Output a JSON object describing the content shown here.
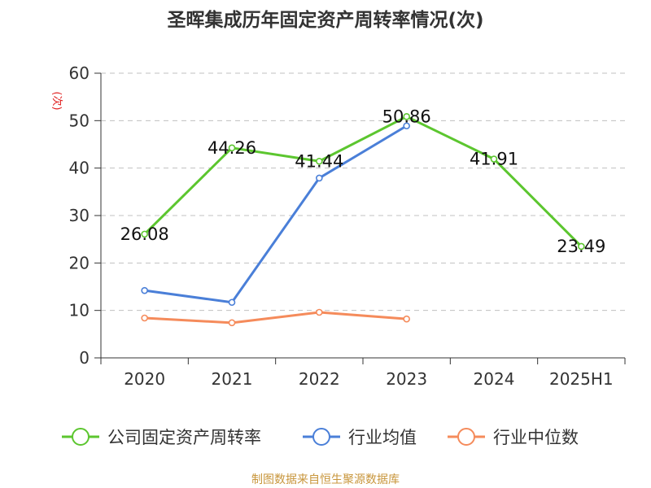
{
  "chart_data": {
    "type": "line",
    "title": "圣晖集成历年固定资产周转率情况(次)",
    "ylabel": "(次)",
    "xlabel": "",
    "categories": [
      "2020",
      "2021",
      "2022",
      "2023",
      "2024",
      "2025H1"
    ],
    "ylim": [
      0,
      60
    ],
    "yticks": [
      0,
      10,
      20,
      30,
      40,
      50,
      60
    ],
    "grid": true,
    "legend_position": "bottom",
    "series": [
      {
        "name": "公司固定资产周转率",
        "color": "#5cc62f",
        "values": [
          26.08,
          44.26,
          41.44,
          50.86,
          41.91,
          23.49
        ],
        "labels": [
          "26.08",
          "44.26",
          "41.44",
          "50.86",
          "41.91",
          "23.49"
        ]
      },
      {
        "name": "行业均值",
        "color": "#4a7fd8",
        "values": [
          14.2,
          11.7,
          37.9,
          48.9,
          null,
          null
        ]
      },
      {
        "name": "行业中位数",
        "color": "#f58b5b",
        "values": [
          8.4,
          7.4,
          9.6,
          8.2,
          null,
          null
        ]
      }
    ],
    "source": "制图数据来自恒生聚源数据库"
  },
  "colors": {
    "axis": "#333333",
    "grid": "#c0c0c0",
    "title": "#333333",
    "ylabel": "#e02020",
    "source": "#c8963c"
  }
}
